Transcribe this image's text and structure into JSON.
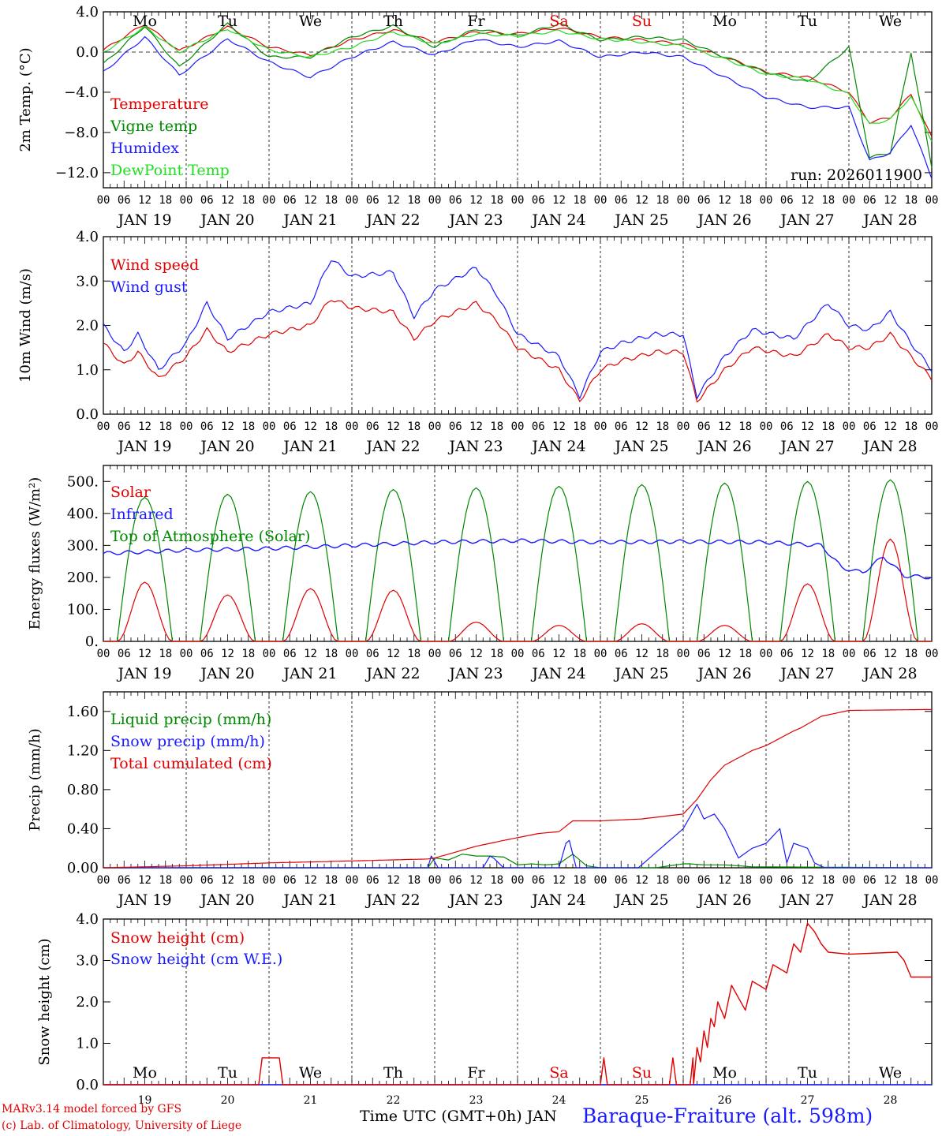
{
  "x_hour_labels": [
    "00",
    "06",
    "12",
    "18"
  ],
  "x_end_label": "00",
  "date_labels": [
    "JAN 19",
    "JAN 20",
    "JAN 21",
    "JAN 22",
    "JAN 23",
    "JAN 24",
    "JAN 25",
    "JAN 26",
    "JAN 27",
    "JAN 28"
  ],
  "weekdays": [
    "Mo",
    "Tu",
    "We",
    "Th",
    "Fr",
    "Sa",
    "Su",
    "Mo",
    "Tu",
    "We"
  ],
  "weekday_colors": [
    "#000000",
    "#000000",
    "#000000",
    "#000000",
    "#000000",
    "#e00000",
    "#e00000",
    "#000000",
    "#000000",
    "#000000"
  ],
  "snow_day_numbers": [
    "19",
    "20",
    "21",
    "22",
    "23",
    "24",
    "25",
    "26",
    "27",
    "28"
  ],
  "footer": {
    "credit_line1": "MARv3.14 model forced by GFS",
    "credit_line2": "(c) Lab. of Climatology, University of Liege",
    "time_axis": "Time UTC (GMT+0h) JAN",
    "station": "Baraque-Fraiture (alt. 598m)"
  },
  "chart_data": [
    {
      "id": "temp",
      "type": "line",
      "ylabel": "2m Temp. (°C)",
      "ylim": [
        -13.5,
        4.0
      ],
      "yticks": [
        4.0,
        0.0,
        -4.0,
        -8.0,
        -12.0
      ],
      "ytick_labels": [
        "4.0",
        "0.0",
        "−4.0",
        "−8.0",
        "−12.0"
      ],
      "zero_line": true,
      "show_weekdays": true,
      "run_label": "run: 2026011900",
      "x": [
        0,
        12,
        22,
        36,
        48,
        60,
        72,
        84,
        96,
        108,
        120,
        132,
        144,
        156,
        168,
        180,
        192,
        204,
        216,
        222,
        228,
        234,
        240
      ],
      "series": [
        {
          "name": "Temperature",
          "color": "#e00000",
          "values": [
            0.2,
            2.8,
            0.1,
            2.5,
            0.5,
            -0.3,
            1.2,
            2.2,
            1.0,
            2.0,
            1.8,
            2.4,
            1.5,
            1.2,
            0.8,
            -0.5,
            -2.0,
            -2.5,
            -4.0,
            -7.0,
            -6.5,
            -4.2,
            -8.5
          ]
        },
        {
          "name": "Vigne temp",
          "color": "#008800",
          "values": [
            -1.2,
            2.6,
            -1.5,
            2.8,
            -0.5,
            -0.5,
            1.5,
            2.6,
            0.5,
            2.3,
            1.6,
            2.8,
            1.2,
            1.5,
            1.2,
            -0.5,
            -2.0,
            -3.0,
            0.5,
            -10.5,
            -10.0,
            0.0,
            -11.5
          ]
        },
        {
          "name": "Humidex",
          "color": "#1a1aff",
          "values": [
            -2.0,
            1.5,
            -2.3,
            1.3,
            -1.0,
            -2.5,
            -0.5,
            1.0,
            -0.3,
            1.3,
            0.5,
            1.1,
            -0.5,
            0.0,
            -0.5,
            -2.5,
            -4.5,
            -5.5,
            -5.5,
            -10.8,
            -10.0,
            -7.2,
            -12.5
          ]
        },
        {
          "name": "DewPoint Temp",
          "color": "#22dd22",
          "values": [
            0.0,
            2.5,
            0.0,
            2.3,
            0.2,
            -0.5,
            0.5,
            2.0,
            0.8,
            1.8,
            1.6,
            2.1,
            1.3,
            1.0,
            0.6,
            -0.7,
            -2.2,
            -2.7,
            -4.2,
            -7.2,
            -6.7,
            -4.4,
            -8.8
          ]
        }
      ]
    },
    {
      "id": "wind",
      "type": "line",
      "ylabel": "10m Wind (m/s)",
      "ylim": [
        0.0,
        4.0
      ],
      "yticks": [
        0.0,
        1.0,
        2.0,
        3.0,
        4.0
      ],
      "ytick_labels": [
        "0.0",
        "1.0",
        "2.0",
        "3.0",
        "4.0"
      ],
      "x": [
        0,
        6,
        10,
        16,
        24,
        30,
        36,
        48,
        60,
        66,
        72,
        84,
        90,
        96,
        108,
        114,
        120,
        132,
        138,
        144,
        150,
        160,
        168,
        172,
        180,
        188,
        200,
        210,
        216,
        222,
        228,
        234,
        240
      ],
      "series": [
        {
          "name": "Wind speed",
          "color": "#e00000",
          "values": [
            1.6,
            1.1,
            1.4,
            0.8,
            1.3,
            1.9,
            1.4,
            1.8,
            2.0,
            2.6,
            2.4,
            2.3,
            1.7,
            2.1,
            2.5,
            2.1,
            1.5,
            1.0,
            0.3,
            1.0,
            1.2,
            1.4,
            1.4,
            0.3,
            1.0,
            1.5,
            1.3,
            1.8,
            1.5,
            1.5,
            1.8,
            1.3,
            0.8
          ]
        },
        {
          "name": "Wind gust",
          "color": "#1a1aff",
          "values": [
            2.0,
            1.4,
            1.8,
            1.0,
            1.6,
            2.5,
            1.7,
            2.3,
            2.5,
            3.5,
            3.1,
            3.2,
            2.2,
            2.8,
            3.3,
            2.7,
            1.8,
            1.3,
            0.4,
            1.4,
            1.6,
            1.8,
            1.8,
            0.4,
            1.3,
            1.9,
            1.7,
            2.5,
            2.0,
            1.9,
            2.3,
            1.6,
            1.0
          ]
        }
      ]
    },
    {
      "id": "energy",
      "type": "line",
      "ylabel": "Energy fluxes (W/m²)",
      "ylim": [
        0.0,
        550.0
      ],
      "yticks": [
        0.0,
        100.0,
        200.0,
        300.0,
        400.0,
        500.0
      ],
      "ytick_labels": [
        "0.",
        "100.",
        "200.",
        "300.",
        "400.",
        "500."
      ],
      "solar_peak_hour": 12,
      "series": [
        {
          "name": "Solar",
          "color": "#e00000",
          "daily_peaks": [
            185,
            145,
            165,
            160,
            60,
            50,
            55,
            50,
            180,
            320
          ]
        },
        {
          "name": "Infrared",
          "color": "#1a1aff",
          "x": [
            0,
            24,
            48,
            72,
            96,
            120,
            144,
            168,
            192,
            208,
            214,
            220,
            226,
            232,
            240
          ],
          "values": [
            275,
            285,
            290,
            300,
            310,
            315,
            310,
            312,
            310,
            300,
            230,
            215,
            265,
            205,
            200
          ]
        },
        {
          "name": "Top of Atmosphere (Solar)",
          "color": "#008800",
          "daily_peaks": [
            450,
            460,
            468,
            475,
            480,
            485,
            490,
            495,
            500,
            505
          ]
        }
      ]
    },
    {
      "id": "precip",
      "type": "line",
      "ylabel": "Precip (mm/h)",
      "ylim": [
        0.0,
        1.8
      ],
      "yticks": [
        0.0,
        0.4,
        0.8,
        1.2,
        1.6
      ],
      "ytick_labels": [
        "0.00",
        "0.40",
        "0.80",
        "1.20",
        "1.60"
      ],
      "series": [
        {
          "name": "Liquid precip (mm/h)",
          "color": "#008800",
          "x": [
            0,
            94,
            96,
            100,
            104,
            108,
            112,
            116,
            120,
            124,
            128,
            132,
            136,
            140,
            144,
            160,
            168,
            170,
            174,
            180,
            188,
            240
          ],
          "values": [
            0.0,
            0.0,
            0.1,
            0.08,
            0.14,
            0.12,
            0.12,
            0.11,
            0.03,
            0.04,
            0.03,
            0.04,
            0.14,
            0.02,
            0.0,
            0.0,
            0.04,
            0.04,
            0.03,
            0.03,
            0.01,
            0.0
          ]
        },
        {
          "name": "Snow precip (mm/h)",
          "color": "#1a1aff",
          "x": [
            0,
            94,
            95,
            97,
            110,
            112,
            113,
            116,
            132,
            134,
            135,
            137,
            155,
            168,
            172,
            174,
            177,
            180,
            184,
            188,
            192,
            196,
            198,
            200,
            204,
            206,
            209,
            214,
            240
          ],
          "values": [
            0.0,
            0.0,
            0.12,
            0.0,
            0.0,
            0.12,
            0.1,
            0.0,
            0.0,
            0.25,
            0.28,
            0.0,
            0.0,
            0.4,
            0.65,
            0.5,
            0.55,
            0.4,
            0.1,
            0.2,
            0.25,
            0.4,
            0.05,
            0.25,
            0.2,
            0.05,
            0.0,
            0.0,
            0.0
          ]
        },
        {
          "name": "Total cumulated (cm)",
          "color": "#e00000",
          "x": [
            0,
            24,
            48,
            72,
            94,
            96,
            108,
            116,
            126,
            132,
            136,
            144,
            156,
            168,
            172,
            176,
            180,
            188,
            192,
            200,
            202,
            208,
            216,
            240
          ],
          "values": [
            0.0,
            0.02,
            0.05,
            0.07,
            0.09,
            0.1,
            0.22,
            0.28,
            0.35,
            0.37,
            0.48,
            0.48,
            0.5,
            0.55,
            0.7,
            0.9,
            1.05,
            1.2,
            1.25,
            1.4,
            1.43,
            1.55,
            1.61,
            1.62
          ]
        }
      ]
    },
    {
      "id": "snow",
      "type": "line",
      "ylabel": "Snow height (cm)",
      "ylim": [
        0.0,
        4.0
      ],
      "yticks": [
        0.0,
        1.0,
        2.0,
        3.0,
        4.0
      ],
      "ytick_labels": [
        "0.0",
        "1.0",
        "2.0",
        "3.0",
        "4.0"
      ],
      "show_weekdays_bottom": true,
      "series": [
        {
          "name": "Snow height (cm)",
          "color": "#e00000",
          "x": [
            0,
            45,
            46,
            51,
            52,
            96,
            144,
            145,
            146,
            164,
            165,
            166,
            170,
            170.8,
            171,
            172,
            173,
            174,
            175,
            176,
            177,
            178,
            180,
            182,
            184,
            186,
            188,
            190,
            192,
            194,
            196,
            198,
            200,
            202,
            204,
            206,
            208,
            210,
            216,
            230,
            232,
            234,
            240
          ],
          "values": [
            0.0,
            0.0,
            0.65,
            0.65,
            0.0,
            0.0,
            0.0,
            0.65,
            0.0,
            0.0,
            0.65,
            0.0,
            0.0,
            0.65,
            0.0,
            0.9,
            0.55,
            1.3,
            0.9,
            1.6,
            1.4,
            2.0,
            1.6,
            2.4,
            2.1,
            1.8,
            2.5,
            2.4,
            2.3,
            2.9,
            2.8,
            2.7,
            3.4,
            3.2,
            3.9,
            3.7,
            3.4,
            3.2,
            3.15,
            3.2,
            3.0,
            2.6,
            2.6
          ]
        },
        {
          "name": "Snow height (cm W.E.)",
          "color": "#1a1aff",
          "x": [
            0,
            240
          ],
          "values": [
            0.0,
            0.0
          ]
        }
      ]
    }
  ]
}
